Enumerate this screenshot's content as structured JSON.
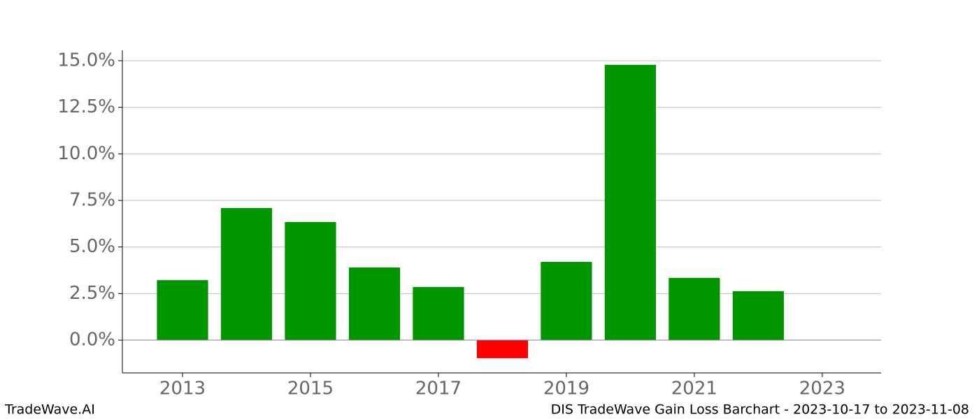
{
  "chart_data": {
    "type": "bar",
    "x": [
      2013,
      2014,
      2015,
      2016,
      2017,
      2018,
      2019,
      2020,
      2021,
      2022
    ],
    "values": [
      3.22,
      7.09,
      6.34,
      3.9,
      2.85,
      -0.97,
      4.2,
      14.78,
      3.34,
      2.63
    ],
    "colors": [
      "#009600",
      "#009600",
      "#009600",
      "#009600",
      "#009600",
      "#ff0000",
      "#009600",
      "#009600",
      "#009600",
      "#009600"
    ],
    "xlim": [
      2012.06,
      2023.92
    ],
    "xticks": [
      2013,
      2015,
      2017,
      2019,
      2021,
      2023
    ],
    "ylim": [
      -1.76,
      15.56
    ],
    "yticks": [
      {
        "value": 0,
        "label": "0.0%"
      },
      {
        "value": 2.5,
        "label": "2.5%"
      },
      {
        "value": 5,
        "label": "5.0%"
      },
      {
        "value": 7.5,
        "label": "7.5%"
      },
      {
        "value": 10,
        "label": "10.0%"
      },
      {
        "value": 12.5,
        "label": "12.5%"
      },
      {
        "value": 15,
        "label": "15.0%"
      }
    ],
    "grid": true,
    "footer_left": "TradeWave.AI",
    "footer_right": "DIS TradeWave Gain Loss Barchart - 2023-10-17 to 2023-11-08"
  }
}
